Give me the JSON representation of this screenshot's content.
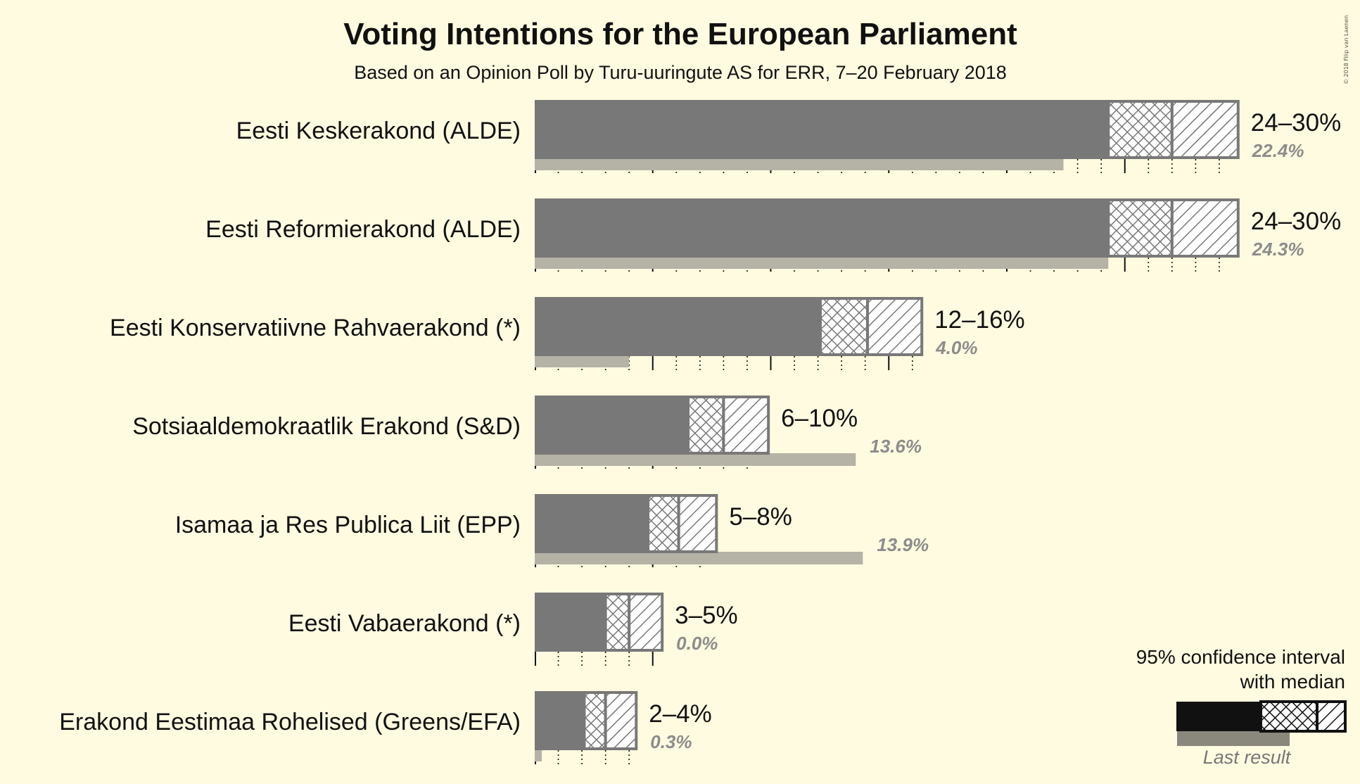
{
  "title": "Voting Intentions for the European Parliament",
  "subtitle": "Based on an Opinion Poll by Turu-uuringute AS for ERR, 7–20 February 2018",
  "copyright": "© 2018 Filip van Laenen",
  "legend": {
    "line1": "95% confidence interval",
    "line2": "with median",
    "last_result": "Last result"
  },
  "colors": {
    "background": "#fffbe0",
    "bar": "#787878",
    "last_result": "#b5b2a6",
    "legend_bar": "#111111",
    "text": "#111111",
    "last_label": "#8c8c8c"
  },
  "chart_data": {
    "type": "bar",
    "orientation": "horizontal",
    "title": "Voting Intentions for the European Parliament",
    "subtitle": "Based on an Opinion Poll by Turu-uuringute AS for ERR, 7–20 February 2018",
    "xlim": [
      0,
      30
    ],
    "series_meaning": {
      "low": "lower bound of 95% confidence interval",
      "median": "median",
      "high": "upper bound of 95% confidence interval",
      "last": "last result"
    },
    "parties": [
      {
        "name": "Eesti Keskerakond (ALDE)",
        "low": 24.3,
        "median": 27.0,
        "high": 29.8,
        "range_label": "24–30%",
        "last": 22.4,
        "last_label": "22.4%"
      },
      {
        "name": "Eesti Reformierakond (ALDE)",
        "low": 24.3,
        "median": 27.0,
        "high": 29.8,
        "range_label": "24–30%",
        "last": 24.3,
        "last_label": "24.3%"
      },
      {
        "name": "Eesti Konservatiivne Rahvaerakond (*)",
        "low": 12.1,
        "median": 14.1,
        "high": 16.4,
        "range_label": "12–16%",
        "last": 4.0,
        "last_label": "4.0%"
      },
      {
        "name": "Sotsiaaldemokraatlik Erakond (S&D)",
        "low": 6.5,
        "median": 8.0,
        "high": 9.9,
        "range_label": "6–10%",
        "last": 13.6,
        "last_label": "13.6%"
      },
      {
        "name": "Isamaa ja Res Publica Liit (EPP)",
        "low": 4.8,
        "median": 6.1,
        "high": 7.7,
        "range_label": "5–8%",
        "last": 13.9,
        "last_label": "13.9%"
      },
      {
        "name": "Eesti Vabaerakond (*)",
        "low": 3.0,
        "median": 4.0,
        "high": 5.4,
        "range_label": "3–5%",
        "last": 0.0,
        "last_label": "0.0%"
      },
      {
        "name": "Erakond Eestimaa Rohelised (Greens/EFA)",
        "low": 2.1,
        "median": 3.0,
        "high": 4.3,
        "range_label": "2–4%",
        "last": 0.3,
        "last_label": "0.3%"
      }
    ]
  }
}
